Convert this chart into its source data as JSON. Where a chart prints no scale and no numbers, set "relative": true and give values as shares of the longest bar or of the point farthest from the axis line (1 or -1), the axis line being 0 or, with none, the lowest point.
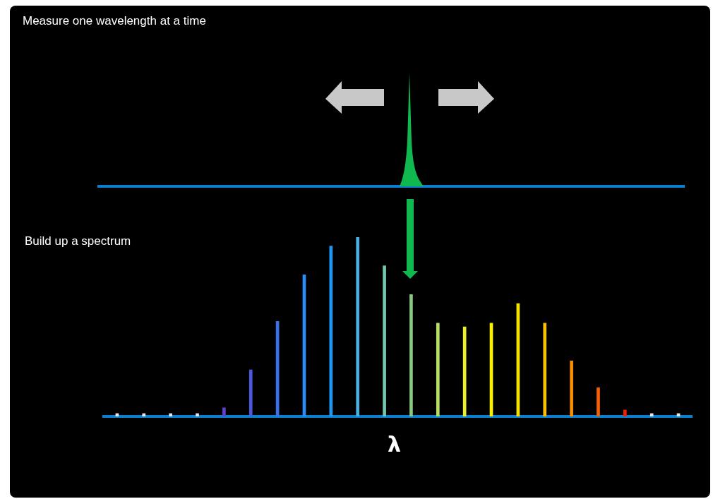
{
  "chart_data": {
    "type": "bar",
    "title": "Measure one wavelength at a time",
    "xlabel": "λ",
    "annotations": [
      "Build up a spectrum"
    ],
    "relative": true,
    "categories": [
      null,
      null,
      null,
      null,
      null,
      null,
      null,
      null,
      null,
      null,
      null,
      null,
      null,
      null,
      null,
      null,
      null,
      null,
      null,
      null,
      null,
      null
    ],
    "values": [
      0.016,
      0.016,
      0.016,
      0.016,
      0.048,
      0.26,
      0.53,
      0.79,
      0.95,
      1,
      0.84,
      0.68,
      0.52,
      0.5,
      0.52,
      0.63,
      0.52,
      0.31,
      0.16,
      0.036,
      0.016,
      0.016
    ],
    "colors": [
      "#e8e8e8",
      "#e8e8e8",
      "#e8e8e8",
      "#e8e8e8",
      "#6040d0",
      "#4a5ae0",
      "#3a70ec",
      "#2a8cf8",
      "#1e98f0",
      "#48b0e0",
      "#70c8b0",
      "#88c880",
      "#b8e060",
      "#e8f030",
      "#f8f000",
      "#f8e000",
      "#f8c000",
      "#f89000",
      "#f86000",
      "#f02000",
      "#e8e8e8",
      "#e8e8e8"
    ]
  }
}
